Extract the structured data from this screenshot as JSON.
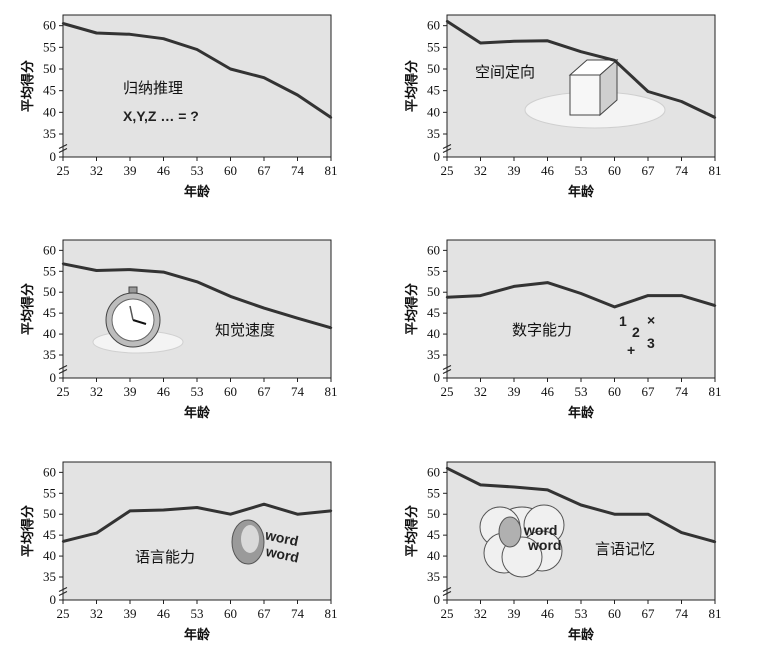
{
  "chart_data": [
    {
      "type": "line",
      "panel_label": "归纳推理",
      "annotation": "X,Y,Z … = ?",
      "xlabel": "年龄",
      "ylabel": "平均得分",
      "x": [
        25,
        32,
        39,
        46,
        53,
        60,
        67,
        74,
        81
      ],
      "y": [
        60.5,
        58.3,
        58.0,
        57.0,
        54.5,
        50.0,
        48.0,
        44.0,
        38.8
      ],
      "xlim": [
        25,
        81
      ],
      "ylim": [
        0,
        62
      ],
      "yticks": [
        0,
        35,
        40,
        45,
        50,
        55,
        60
      ],
      "illustration": "question-sequence"
    },
    {
      "type": "line",
      "panel_label": "空间定向",
      "xlabel": "年龄",
      "ylabel": "平均得分",
      "x": [
        25,
        32,
        39,
        46,
        53,
        60,
        67,
        74,
        81
      ],
      "y": [
        61.0,
        56.0,
        56.4,
        56.5,
        54.0,
        52.0,
        44.8,
        42.5,
        38.8
      ],
      "xlim": [
        25,
        81
      ],
      "ylim": [
        0,
        62
      ],
      "yticks": [
        0,
        35,
        40,
        45,
        50,
        55,
        60
      ],
      "illustration": "cube-icon"
    },
    {
      "type": "line",
      "panel_label": "知觉速度",
      "xlabel": "年龄",
      "ylabel": "平均得分",
      "x": [
        25,
        32,
        39,
        46,
        53,
        60,
        67,
        74,
        81
      ],
      "y": [
        56.8,
        55.2,
        55.4,
        54.8,
        52.5,
        49.0,
        46.2,
        43.8,
        41.5
      ],
      "xlim": [
        25,
        81
      ],
      "ylim": [
        0,
        62
      ],
      "yticks": [
        0,
        35,
        40,
        45,
        50,
        55,
        60
      ],
      "illustration": "stopwatch-icon"
    },
    {
      "type": "line",
      "panel_label": "数字能力",
      "annotation_items": [
        "1",
        "2",
        "3",
        "×",
        "+"
      ],
      "xlabel": "年龄",
      "ylabel": "平均得分",
      "x": [
        25,
        32,
        39,
        46,
        53,
        60,
        67,
        74,
        81
      ],
      "y": [
        48.8,
        49.2,
        51.4,
        52.3,
        49.7,
        46.5,
        49.2,
        49.2,
        46.8
      ],
      "xlim": [
        25,
        81
      ],
      "ylim": [
        0,
        62
      ],
      "yticks": [
        0,
        35,
        40,
        45,
        50,
        55,
        60
      ],
      "illustration": "numbers-icon"
    },
    {
      "type": "line",
      "panel_label": "语言能力",
      "annotation_words": [
        "word",
        "word"
      ],
      "xlabel": "年龄",
      "ylabel": "平均得分",
      "x": [
        25,
        32,
        39,
        46,
        53,
        60,
        67,
        74,
        81
      ],
      "y": [
        43.5,
        45.5,
        50.8,
        51.0,
        51.6,
        50.0,
        52.4,
        50.0,
        50.8
      ],
      "xlim": [
        25,
        81
      ],
      "ylim": [
        0,
        62
      ],
      "yticks": [
        0,
        35,
        40,
        45,
        50,
        55,
        60
      ],
      "illustration": "face-word-icon"
    },
    {
      "type": "line",
      "panel_label": "言语记忆",
      "annotation_words": [
        "word",
        "word"
      ],
      "xlabel": "年龄",
      "ylabel": "平均得分",
      "x": [
        25,
        32,
        39,
        46,
        53,
        60,
        67,
        74,
        81
      ],
      "y": [
        61.0,
        57.0,
        56.5,
        55.8,
        52.2,
        50.0,
        50.0,
        45.6,
        43.4
      ],
      "xlim": [
        25,
        81
      ],
      "ylim": [
        0,
        62
      ],
      "yticks": [
        0,
        35,
        40,
        45,
        50,
        55,
        60
      ],
      "illustration": "thought-cloud-icon"
    }
  ]
}
